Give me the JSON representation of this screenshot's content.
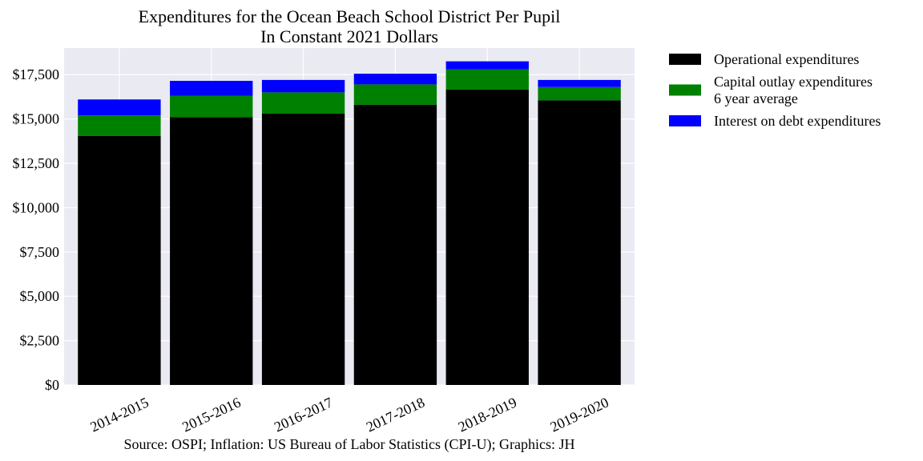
{
  "chart_data": {
    "type": "bar",
    "stacked": true,
    "title": "Expenditures for the Ocean Beach School District Per Pupil",
    "subtitle": "In Constant 2021 Dollars",
    "xlabel": "",
    "ylabel": "",
    "categories": [
      "2014-2015",
      "2015-2016",
      "2016-2017",
      "2017-2018",
      "2018-2019",
      "2019-2020"
    ],
    "series": [
      {
        "name": "Operational expenditures",
        "color": "#000000",
        "values": [
          14050,
          15100,
          15300,
          15800,
          16650,
          16050
        ]
      },
      {
        "name": "Capital outlay expenditures\n6 year average",
        "color": "#008000",
        "values": [
          1150,
          1200,
          1200,
          1150,
          1150,
          750
        ]
      },
      {
        "name": "Interest on debt expenditures",
        "color": "#0000ff",
        "values": [
          900,
          850,
          700,
          600,
          450,
          400
        ]
      }
    ],
    "ylim": [
      0,
      19000
    ],
    "yticks": [
      0,
      2500,
      5000,
      7500,
      10000,
      12500,
      15000,
      17500
    ],
    "ytick_labels": [
      "$0",
      "$2,500",
      "$5,000",
      "$7,500",
      "$10,000",
      "$12,500",
      "$15,000",
      "$17,500"
    ],
    "grid": true,
    "legend_position": "outside-right",
    "background_color": "#eaeaf2",
    "source": "Source: OSPI; Inflation: US Bureau of Labor Statistics (CPI-U); Graphics: JH"
  }
}
